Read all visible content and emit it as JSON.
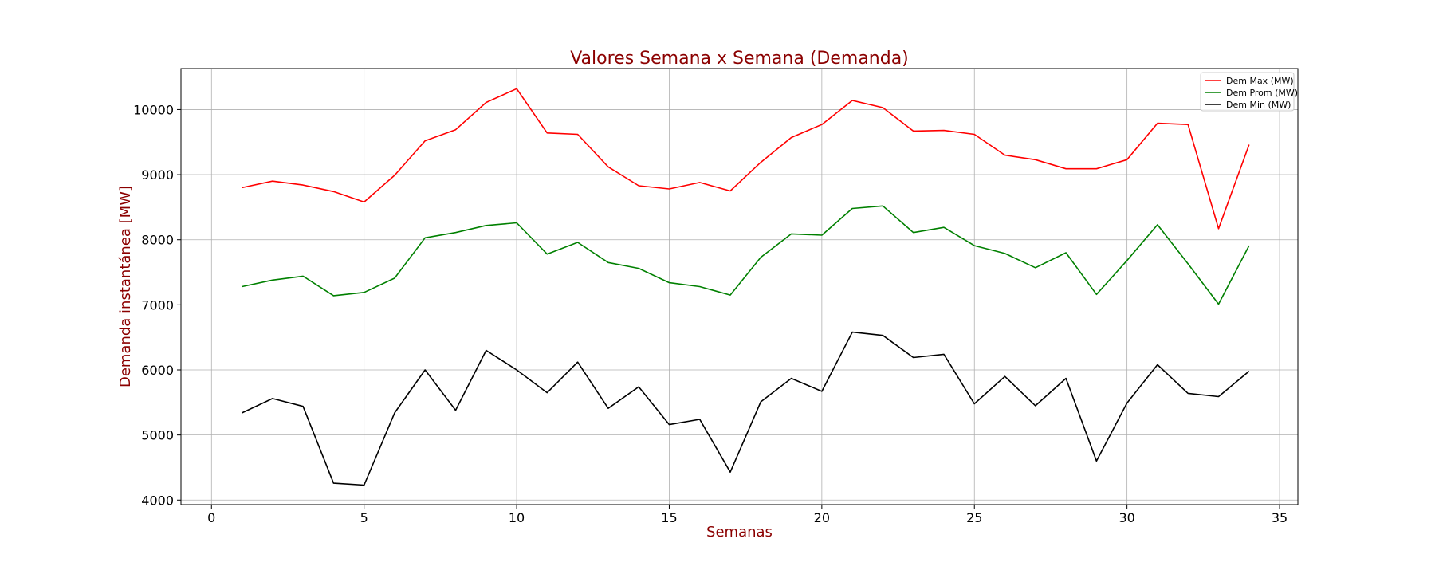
{
  "chart_data": {
    "type": "line",
    "title": "Valores Semana x Semana (Demanda)",
    "xlabel": "Semanas",
    "ylabel": "Demanda instantánea [MW]",
    "text_color": "#8b0000",
    "xlim": [
      -1,
      35.6
    ],
    "ylim": [
      3930,
      10630
    ],
    "xticks": [
      0,
      5,
      10,
      15,
      20,
      25,
      30,
      35
    ],
    "yticks": [
      4000,
      5000,
      6000,
      7000,
      8000,
      9000,
      10000
    ],
    "grid": true,
    "legend_position": "top-right",
    "x": [
      1,
      2,
      3,
      4,
      5,
      6,
      7,
      8,
      9,
      10,
      11,
      12,
      13,
      14,
      15,
      16,
      17,
      18,
      19,
      20,
      21,
      22,
      23,
      24,
      25,
      26,
      27,
      28,
      29,
      30,
      31,
      32,
      33,
      34
    ],
    "series": [
      {
        "name": "Dem Max (MW)",
        "color": "#ff0000",
        "values": [
          8800,
          8900,
          8840,
          8740,
          8580,
          8990,
          9520,
          9690,
          10110,
          10320,
          9640,
          9620,
          9120,
          8830,
          8780,
          8880,
          8750,
          9190,
          9570,
          9770,
          10140,
          10030,
          9670,
          9680,
          9620,
          9300,
          9230,
          9090,
          9090,
          9230,
          9790,
          9770,
          8170,
          9460
        ]
      },
      {
        "name": "Dem Prom (MW)",
        "color": "#008000",
        "values": [
          7280,
          7380,
          7440,
          7140,
          7190,
          7410,
          8030,
          8110,
          8220,
          8260,
          7780,
          7960,
          7650,
          7560,
          7340,
          7280,
          7150,
          7730,
          8090,
          8070,
          8480,
          8520,
          8110,
          8190,
          7910,
          7790,
          7570,
          7800,
          7160,
          7680,
          8230,
          7630,
          7010,
          7910
        ]
      },
      {
        "name": "Dem Min (MW)",
        "color": "#000000",
        "values": [
          5340,
          5560,
          5440,
          4260,
          4230,
          5340,
          6000,
          5380,
          6300,
          6000,
          5650,
          6120,
          5410,
          5740,
          5160,
          5240,
          4430,
          5510,
          5870,
          5670,
          6580,
          6530,
          6190,
          6240,
          5480,
          5900,
          5450,
          5870,
          4600,
          5490,
          6080,
          5640,
          5590,
          5980
        ]
      }
    ]
  }
}
